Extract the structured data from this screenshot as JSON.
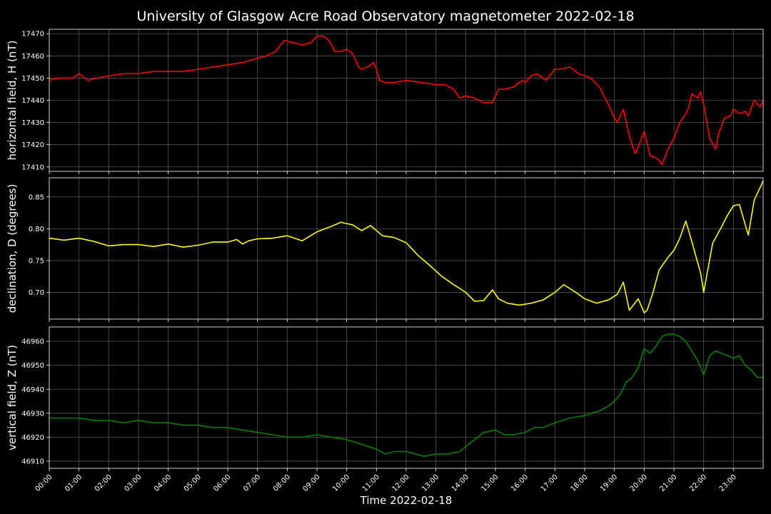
{
  "figure": {
    "title": "University of Glasgow Acre Road Observatory magnetometer 2022-02-18",
    "xlabel": "Time 2022-02-18",
    "background": "#000000",
    "grid_color": "#555555",
    "axis_color": "#ffffff"
  },
  "chart_data": [
    {
      "type": "line",
      "ylabel": "horizontal field, H (nT)",
      "color": "#ff0000",
      "ylim": [
        17408,
        17472
      ],
      "yticks": [
        17410,
        17420,
        17430,
        17440,
        17450,
        17460,
        17470
      ],
      "ytick_labels": [
        "17410",
        "17420",
        "17430",
        "17440",
        "17450",
        "17460",
        "17470"
      ],
      "xlim": [
        0,
        24
      ],
      "grid": true,
      "series": [
        {
          "x": [
            0,
            0.3,
            0.5,
            0.8,
            1.0,
            1.3,
            1.6,
            2.0,
            2.5,
            3.0,
            3.5,
            4.0,
            4.5,
            5.0,
            5.5,
            6.0,
            6.5,
            7.0,
            7.3,
            7.6,
            7.9,
            8.2,
            8.5,
            8.8,
            9.0,
            9.2,
            9.4,
            9.6,
            9.8,
            10.0,
            10.2,
            10.4,
            10.5,
            10.7,
            10.9,
            11.0,
            11.1,
            11.3,
            11.6,
            12.0,
            12.5,
            13.0,
            13.3,
            13.6,
            13.8,
            14.0,
            14.3,
            14.6,
            14.9,
            15.1,
            15.3,
            15.6,
            15.9,
            16.0,
            16.2,
            16.4,
            16.7,
            17.0,
            17.2,
            17.5,
            17.8,
            18.0,
            18.2,
            18.5,
            18.8,
            19.0,
            19.1,
            19.3,
            19.5,
            19.7,
            19.8,
            20.0,
            20.2,
            20.4,
            20.5,
            20.6,
            20.8,
            21.0,
            21.2,
            21.4,
            21.5,
            21.6,
            21.8,
            21.9,
            22.0,
            22.2,
            22.4,
            22.5,
            22.7,
            22.9,
            23.0,
            23.2,
            23.4,
            23.5,
            23.7,
            23.9,
            24.0
          ],
          "y": [
            17449,
            17450,
            17450,
            17450,
            17452,
            17449,
            17450,
            17451,
            17452,
            17452,
            17453,
            17453,
            17453,
            17454,
            17455,
            17456,
            17457,
            17459,
            17460,
            17462,
            17467,
            17466,
            17465,
            17466,
            17469,
            17469,
            17467,
            17462,
            17462,
            17463,
            17461,
            17455,
            17454,
            17455,
            17457,
            17454,
            17449,
            17448,
            17448,
            17449,
            17448,
            17447,
            17447,
            17445,
            17441,
            17442,
            17441,
            17439,
            17439,
            17445,
            17445,
            17446,
            17449,
            17448,
            17451,
            17452,
            17449,
            17454,
            17454,
            17455,
            17452,
            17451,
            17450,
            17446,
            17438,
            17432,
            17430,
            17436,
            17424,
            17416,
            17419,
            17426,
            17415,
            17414,
            17413,
            17411,
            17418,
            17423,
            17430,
            17434,
            17437,
            17443,
            17441,
            17444,
            17438,
            17423,
            17418,
            17425,
            17432,
            17433,
            17436,
            17434,
            17435,
            17433,
            17440,
            17437,
            17440
          ]
        }
      ]
    },
    {
      "type": "line",
      "ylabel": "declination, D (degrees)",
      "color": "#ffff00",
      "ylim": [
        0.658,
        0.88
      ],
      "yticks": [
        0.7,
        0.75,
        0.8,
        0.85
      ],
      "ytick_labels": [
        "0.70",
        "0.75",
        "0.80",
        "0.85"
      ],
      "xlim": [
        0,
        24
      ],
      "grid": true,
      "series": [
        {
          "x": [
            0,
            0.5,
            1.0,
            1.5,
            2.0,
            2.5,
            3.0,
            3.5,
            4.0,
            4.5,
            5.0,
            5.5,
            6.0,
            6.3,
            6.5,
            6.7,
            7.0,
            7.5,
            8.0,
            8.5,
            9.0,
            9.5,
            9.8,
            10.2,
            10.5,
            10.8,
            11.2,
            11.6,
            12.0,
            12.4,
            12.8,
            13.2,
            13.6,
            14.0,
            14.3,
            14.6,
            14.9,
            15.1,
            15.4,
            15.8,
            16.2,
            16.6,
            17.0,
            17.3,
            17.7,
            18.0,
            18.4,
            18.8,
            19.1,
            19.3,
            19.5,
            19.8,
            20.0,
            20.1,
            20.3,
            20.5,
            20.8,
            21.0,
            21.2,
            21.4,
            21.6,
            21.9,
            22.0,
            22.3,
            22.6,
            22.8,
            23.0,
            23.2,
            23.5,
            23.7,
            24.0
          ],
          "y": [
            0.785,
            0.782,
            0.785,
            0.78,
            0.773,
            0.775,
            0.775,
            0.772,
            0.776,
            0.771,
            0.774,
            0.779,
            0.779,
            0.783,
            0.776,
            0.781,
            0.784,
            0.785,
            0.789,
            0.781,
            0.795,
            0.804,
            0.81,
            0.806,
            0.797,
            0.805,
            0.789,
            0.786,
            0.778,
            0.758,
            0.742,
            0.725,
            0.712,
            0.7,
            0.686,
            0.687,
            0.704,
            0.69,
            0.683,
            0.68,
            0.683,
            0.688,
            0.7,
            0.712,
            0.7,
            0.69,
            0.683,
            0.688,
            0.697,
            0.716,
            0.672,
            0.69,
            0.668,
            0.672,
            0.7,
            0.735,
            0.755,
            0.766,
            0.785,
            0.812,
            0.78,
            0.73,
            0.7,
            0.777,
            0.803,
            0.821,
            0.836,
            0.838,
            0.79,
            0.845,
            0.875
          ]
        }
      ]
    },
    {
      "type": "line",
      "ylabel": "vertical field, Z (nT)",
      "color": "#008000",
      "ylim": [
        46907,
        46966
      ],
      "yticks": [
        46910,
        46920,
        46930,
        46940,
        46950,
        46960
      ],
      "ytick_labels": [
        "46910",
        "46920",
        "46930",
        "46940",
        "46950",
        "46960"
      ],
      "xlim": [
        0,
        24
      ],
      "grid": true,
      "series": [
        {
          "x": [
            0,
            0.5,
            1.0,
            1.5,
            2.0,
            2.5,
            3.0,
            3.5,
            4.0,
            4.5,
            5.0,
            5.5,
            6.0,
            6.5,
            7.0,
            7.5,
            8.0,
            8.5,
            9.0,
            9.5,
            10.0,
            10.5,
            11.0,
            11.3,
            11.6,
            12.0,
            12.3,
            12.6,
            13.0,
            13.4,
            13.8,
            14.0,
            14.3,
            14.6,
            15.0,
            15.3,
            15.6,
            16.0,
            16.3,
            16.6,
            17.0,
            17.5,
            18.0,
            18.5,
            18.8,
            19.0,
            19.2,
            19.4,
            19.6,
            19.8,
            20.0,
            20.2,
            20.4,
            20.6,
            20.8,
            21.0,
            21.2,
            21.4,
            21.6,
            21.8,
            22.0,
            22.2,
            22.4,
            22.6,
            22.8,
            23.0,
            23.2,
            23.4,
            23.6,
            23.8,
            24.0
          ],
          "y": [
            46928,
            46928,
            46928,
            46927,
            46927,
            46926,
            46927,
            46926,
            46926,
            46925,
            46925,
            46924,
            46924,
            46923,
            46922,
            46921,
            46920,
            46920,
            46921,
            46920,
            46919,
            46917,
            46915,
            46913,
            46914,
            46914,
            46913,
            46912,
            46913,
            46913,
            46914,
            46916,
            46919,
            46922,
            46923,
            46921,
            46921,
            46922,
            46924,
            46924,
            46926,
            46928,
            46929,
            46931,
            46933,
            46935,
            46938,
            46943,
            46945,
            46949,
            46957,
            46955,
            46958,
            46962,
            46963,
            46963,
            46962,
            46960,
            46956,
            46952,
            46946,
            46954,
            46956,
            46955,
            46954,
            46953,
            46954,
            46950,
            46948,
            46945,
            46945
          ]
        }
      ]
    }
  ],
  "xticks": [
    0,
    1,
    2,
    3,
    4,
    5,
    6,
    7,
    8,
    9,
    10,
    11,
    12,
    13,
    14,
    15,
    16,
    17,
    18,
    19,
    20,
    21,
    22,
    23
  ],
  "xtick_labels": [
    "00:00",
    "01:00",
    "02:00",
    "03:00",
    "04:00",
    "05:00",
    "06:00",
    "07:00",
    "08:00",
    "09:00",
    "10:00",
    "11:00",
    "12:00",
    "13:00",
    "14:00",
    "15:00",
    "16:00",
    "17:00",
    "18:00",
    "19:00",
    "20:00",
    "21:00",
    "22:00",
    "23:00"
  ]
}
